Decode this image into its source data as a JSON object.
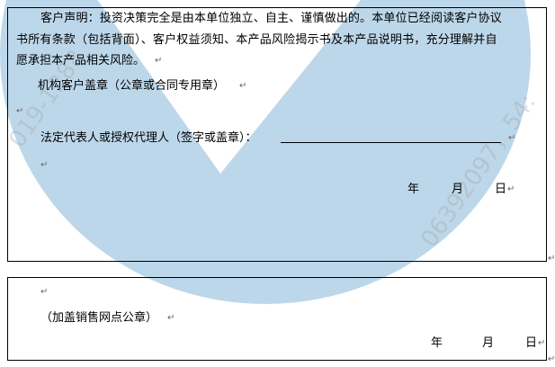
{
  "watermark": {
    "color": "#bdd7ea",
    "text_left": "019-1288",
    "text_right": "06392097，54:"
  },
  "customer_box": {
    "declaration_lines": [
      "客户声明：投资决策完全是由本单位独立、自主、谨慎做出的。本单位已经阅读客户协议",
      "书所有条款（包括背面）、客户权益须知、本产品风险揭示书及本产品说明书，充分理解并自",
      "愿承担本产品相关风险。"
    ],
    "seal_label": "机构客户盖章（公章或合同专用章）",
    "signature_label": "法定代表人或授权代理人（签字或盖章）：",
    "date": {
      "year": "年",
      "month": "月",
      "day": "日"
    }
  },
  "branch_box": {
    "seal_label": "（加盖销售网点公章）",
    "date": {
      "year": "年",
      "month": "月",
      "day": "日"
    }
  },
  "paragraph_mark": "↵"
}
